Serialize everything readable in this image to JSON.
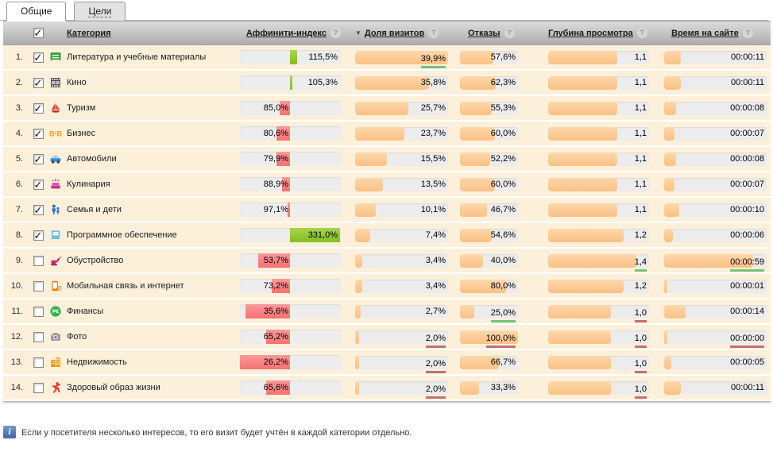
{
  "tabs": [
    {
      "label": "Общие",
      "active": true
    },
    {
      "label": "Цели",
      "active": false
    }
  ],
  "header": {
    "category": "Категория",
    "affinity": "Аффинити-индекс",
    "share": "Доля визитов",
    "bounce": "Отказы",
    "depth": "Глубина просмотра",
    "time": "Время на сайте",
    "sorted_by": "share",
    "sort_arrow": "▼",
    "help_glyph": "?",
    "select_all_checked": true
  },
  "colors": {
    "row_bg": "#fcf0db",
    "orange_bar": "#fbc98f",
    "track": "#ececec",
    "affinity_red": "#f87c7c",
    "affinity_green": "#8dc63f",
    "best_underline": "#76c376",
    "worst_underline": "#c4716f"
  },
  "chart_scales": {
    "share_axis_max_pct": 45,
    "bounce_axis_max_pct": 100,
    "depth_axis_max": 1.6,
    "time_axis_max_s": 68,
    "affinity_center_pct": 100
  },
  "rows": [
    {
      "num": "1.",
      "checked": true,
      "icon": "literature",
      "label": "Литература и учебные материалы",
      "affinity": 115.5,
      "affinity_label": "115,5%",
      "share": 39.9,
      "share_label": "39,9%",
      "share_mark": "green",
      "bounce": 57.6,
      "bounce_label": "57,6%",
      "depth": 1.1,
      "depth_label": "1,1",
      "time_s": 11,
      "time_label": "00:00:11"
    },
    {
      "num": "2.",
      "checked": true,
      "icon": "cinema",
      "label": "Кино",
      "affinity": 105.3,
      "affinity_label": "105,3%",
      "share": 35.8,
      "share_label": "35,8%",
      "bounce": 62.3,
      "bounce_label": "62,3%",
      "depth": 1.1,
      "depth_label": "1,1",
      "time_s": 11,
      "time_label": "00:00:11"
    },
    {
      "num": "3.",
      "checked": true,
      "icon": "tourism",
      "label": "Туризм",
      "affinity": 85.0,
      "affinity_label": "85,0%",
      "share": 25.7,
      "share_label": "25,7%",
      "bounce": 55.3,
      "bounce_label": "55,3%",
      "depth": 1.1,
      "depth_label": "1,1",
      "time_s": 8,
      "time_label": "00:00:08"
    },
    {
      "num": "4.",
      "checked": true,
      "icon": "business",
      "label": "Бизнес",
      "affinity": 80.6,
      "affinity_label": "80,6%",
      "share": 23.7,
      "share_label": "23,7%",
      "bounce": 60.0,
      "bounce_label": "60,0%",
      "depth": 1.1,
      "depth_label": "1,1",
      "time_s": 7,
      "time_label": "00:00:07"
    },
    {
      "num": "5.",
      "checked": true,
      "icon": "auto",
      "label": "Автомобили",
      "affinity": 79.9,
      "affinity_label": "79,9%",
      "share": 15.5,
      "share_label": "15,5%",
      "bounce": 52.2,
      "bounce_label": "52,2%",
      "depth": 1.1,
      "depth_label": "1,1",
      "time_s": 8,
      "time_label": "00:00:08"
    },
    {
      "num": "6.",
      "checked": true,
      "icon": "cooking",
      "label": "Кулинария",
      "affinity": 88.9,
      "affinity_label": "88,9%",
      "share": 13.5,
      "share_label": "13,5%",
      "bounce": 60.0,
      "bounce_label": "60,0%",
      "depth": 1.1,
      "depth_label": "1,1",
      "time_s": 7,
      "time_label": "00:00:07"
    },
    {
      "num": "7.",
      "checked": true,
      "icon": "family",
      "label": "Семья и дети",
      "affinity": 97.1,
      "affinity_label": "97,1%",
      "share": 10.1,
      "share_label": "10,1%",
      "bounce": 46.7,
      "bounce_label": "46,7%",
      "depth": 1.1,
      "depth_label": "1,1",
      "time_s": 10,
      "time_label": "00:00:10"
    },
    {
      "num": "8.",
      "checked": true,
      "icon": "software",
      "label": "Программное обеспечение",
      "affinity": 331.0,
      "affinity_label": "331,0%",
      "share": 7.4,
      "share_label": "7,4%",
      "bounce": 54.6,
      "bounce_label": "54,6%",
      "depth": 1.2,
      "depth_label": "1,2",
      "time_s": 6,
      "time_label": "00:00:06"
    },
    {
      "num": "9.",
      "checked": false,
      "icon": "renovation",
      "label": "Обустройство",
      "affinity": 53.7,
      "affinity_label": "53,7%",
      "share": 3.4,
      "share_label": "3,4%",
      "bounce": 40.0,
      "bounce_label": "40,0%",
      "depth": 1.4,
      "depth_label": "1,4",
      "depth_mark": "green",
      "time_s": 59,
      "time_label": "00:00:59",
      "time_mark": "green"
    },
    {
      "num": "10.",
      "checked": false,
      "icon": "mobile",
      "label": "Мобильная связь и интернет",
      "affinity": 73.2,
      "affinity_label": "73,2%",
      "share": 3.4,
      "share_label": "3,4%",
      "bounce": 80.0,
      "bounce_label": "80,0%",
      "depth": 1.2,
      "depth_label": "1,2",
      "time_s": 1,
      "time_label": "00:00:01"
    },
    {
      "num": "11.",
      "checked": false,
      "icon": "finance",
      "label": "Финансы",
      "affinity": 35.6,
      "affinity_label": "35,6%",
      "share": 2.7,
      "share_label": "2,7%",
      "bounce": 25.0,
      "bounce_label": "25,0%",
      "bounce_mark": "green",
      "depth": 1.0,
      "depth_label": "1,0",
      "depth_mark": "red",
      "time_s": 14,
      "time_label": "00:00:14"
    },
    {
      "num": "12.",
      "checked": false,
      "icon": "photo",
      "label": "Фото",
      "affinity": 65.2,
      "affinity_label": "65,2%",
      "share": 2.0,
      "share_label": "2,0%",
      "share_mark": "red",
      "bounce": 100.0,
      "bounce_label": "100,0%",
      "bounce_mark": "red",
      "depth": 1.0,
      "depth_label": "1,0",
      "depth_mark": "red",
      "time_s": 0,
      "time_label": "00:00:00",
      "time_mark": "red"
    },
    {
      "num": "13.",
      "checked": false,
      "icon": "realty",
      "label": "Недвижимость",
      "affinity": 26.2,
      "affinity_label": "26,2%",
      "share": 2.0,
      "share_label": "2,0%",
      "share_mark": "red",
      "bounce": 66.7,
      "bounce_label": "66,7%",
      "depth": 1.0,
      "depth_label": "1,0",
      "depth_mark": "red",
      "time_s": 5,
      "time_label": "00:00:05"
    },
    {
      "num": "14.",
      "checked": false,
      "icon": "health",
      "label": "Здоровый образ жизни",
      "affinity": 65.6,
      "affinity_label": "65,6%",
      "share": 2.0,
      "share_label": "2,0%",
      "share_mark": "red",
      "bounce": 33.3,
      "bounce_label": "33,3%",
      "depth": 1.0,
      "depth_label": "1,0",
      "depth_mark": "red",
      "time_s": 11,
      "time_label": "00:00:11"
    }
  ],
  "footer": {
    "note": "Если у посетителя несколько интересов, то его визит будет учтён в каждой категории отдельно."
  }
}
